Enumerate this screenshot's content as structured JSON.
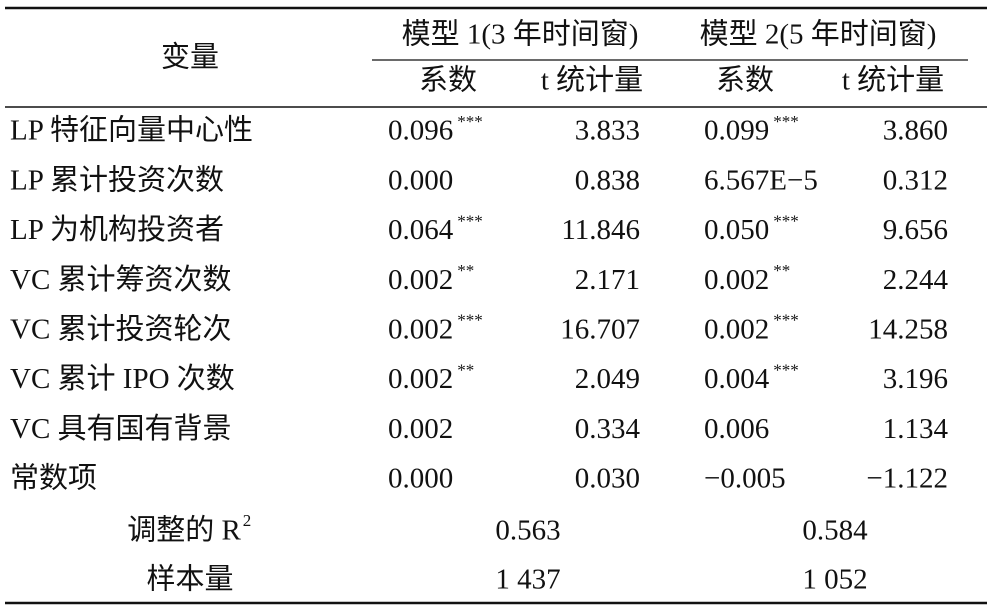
{
  "header": {
    "variable": "变量",
    "models": [
      "模型 1(3 年时间窗)",
      "模型 2(5 年时间窗)"
    ],
    "subheaders": [
      "系数",
      "t 统计量",
      "系数",
      "t 统计量"
    ]
  },
  "table": {
    "rows": [
      {
        "label": "LP 特征向量中心性",
        "model1": {
          "coef": "0.096",
          "stars": "***",
          "t": "3.833"
        },
        "model2": {
          "coef": "0.099",
          "stars": "***",
          "t": "3.860"
        }
      },
      {
        "label": "LP 累计投资次数",
        "model1": {
          "coef": "0.000",
          "t": "0.838"
        },
        "model2": {
          "coef": "6.567E−5",
          "t": "0.312"
        }
      },
      {
        "label": "LP 为机构投资者",
        "model1": {
          "coef": "0.064",
          "stars": "***",
          "t": "11.846"
        },
        "model2": {
          "coef": "0.050",
          "stars": "***",
          "t": "9.656"
        }
      },
      {
        "label": "VC 累计筹资次数",
        "model1": {
          "coef": "0.002",
          "stars": "**",
          "t": "2.171"
        },
        "model2": {
          "coef": "0.002",
          "stars": "**",
          "t": "2.244"
        }
      },
      {
        "label": "VC 累计投资轮次",
        "model1": {
          "coef": "0.002",
          "stars": "***",
          "t": "16.707"
        },
        "model2": {
          "coef": "0.002",
          "stars": "***",
          "t": "14.258"
        }
      },
      {
        "label": "VC 累计 IPO 次数",
        "model1": {
          "coef": "0.002",
          "stars": "**",
          "t": "2.049"
        },
        "model2": {
          "coef": "0.004",
          "stars": "***",
          "t": "3.196"
        }
      },
      {
        "label": "VC 具有国有背景",
        "model1": {
          "coef": "0.002",
          "t": "0.334"
        },
        "model2": {
          "coef": "0.006",
          "t": "1.134"
        }
      },
      {
        "label": "常数项",
        "model1": {
          "coef": "0.000",
          "t": "0.030"
        },
        "model2": {
          "coef": "−0.005",
          "t": "−1.122"
        }
      }
    ],
    "footer": [
      {
        "label": "调整的 R",
        "label_sup": "2",
        "values": [
          "0.563",
          "0.584"
        ]
      },
      {
        "label": "样本量",
        "values": [
          "1 437",
          "1 052"
        ]
      }
    ]
  }
}
